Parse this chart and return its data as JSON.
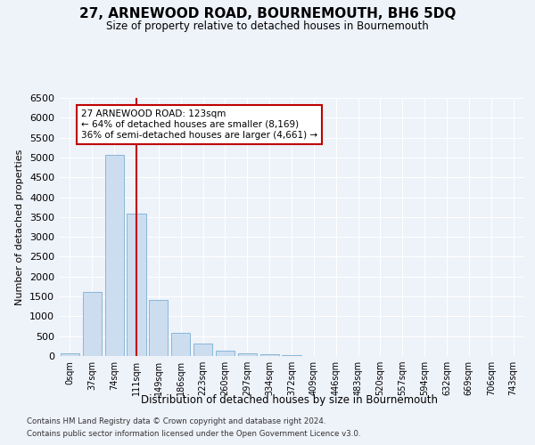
{
  "title": "27, ARNEWOOD ROAD, BOURNEMOUTH, BH6 5DQ",
  "subtitle": "Size of property relative to detached houses in Bournemouth",
  "xlabel": "Distribution of detached houses by size in Bournemouth",
  "ylabel": "Number of detached properties",
  "footnote1": "Contains HM Land Registry data © Crown copyright and database right 2024.",
  "footnote2": "Contains public sector information licensed under the Open Government Licence v3.0.",
  "bin_labels": [
    "0sqm",
    "37sqm",
    "74sqm",
    "111sqm",
    "149sqm",
    "186sqm",
    "223sqm",
    "260sqm",
    "297sqm",
    "334sqm",
    "372sqm",
    "409sqm",
    "446sqm",
    "483sqm",
    "520sqm",
    "557sqm",
    "594sqm",
    "632sqm",
    "669sqm",
    "706sqm",
    "743sqm"
  ],
  "bar_values": [
    75,
    1620,
    5060,
    3580,
    1420,
    590,
    310,
    140,
    75,
    40,
    20,
    10,
    5,
    3,
    2,
    2,
    1,
    1,
    1,
    1,
    1
  ],
  "bar_color": "#ccddf0",
  "bar_edgecolor": "#7aafd4",
  "ylim": [
    0,
    6500
  ],
  "yticks": [
    0,
    500,
    1000,
    1500,
    2000,
    2500,
    3000,
    3500,
    4000,
    4500,
    5000,
    5500,
    6000,
    6500
  ],
  "property_bin_index": 3,
  "vline_color": "#c00000",
  "annotation_text": "27 ARNEWOOD ROAD: 123sqm\n← 64% of detached houses are smaller (8,169)\n36% of semi-detached houses are larger (4,661) →",
  "annotation_box_edgecolor": "#c00000",
  "bg_color": "#eef2f9",
  "grid_color": "#ffffff"
}
